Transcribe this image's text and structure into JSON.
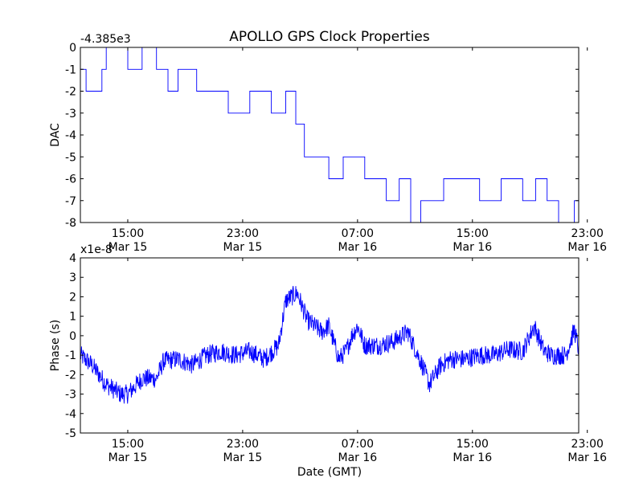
{
  "title": "APOLLO GPS Clock Properties",
  "xlabel": "Date (GMT)",
  "x_ticks": [
    {
      "time": "15:00",
      "date": "Mar 15"
    },
    {
      "time": "23:00",
      "date": "Mar 15"
    },
    {
      "time": "07:00",
      "date": "Mar 16"
    },
    {
      "time": "15:00",
      "date": "Mar 16"
    },
    {
      "time": "23:00",
      "date": "Mar 16"
    }
  ],
  "chart_data": [
    {
      "type": "line",
      "name": "dac",
      "title": "APOLLO GPS Clock Properties",
      "ylabel": "DAC",
      "offset_label": "-4.385e3",
      "x_units": "hours since 00:00 Mar 15 (GMT)",
      "xlim": [
        11.7,
        46.4
      ],
      "ylim": [
        -8,
        0
      ],
      "yticks": [
        0,
        -1,
        -2,
        -3,
        -4,
        -5,
        -6,
        -7,
        -8
      ],
      "ytick_labels": [
        "0",
        "-1",
        "-2",
        "-3",
        "-4",
        "-5",
        "-6",
        "-7",
        "-8"
      ],
      "color": "#0000ff",
      "x": [
        11.7,
        12.1,
        13.2,
        13.5,
        15.0,
        16.0,
        17.0,
        17.8,
        18.5,
        19.8,
        21.0,
        22.0,
        23.5,
        25.0,
        26.0,
        26.7,
        27.3,
        28.0,
        29.0,
        30.0,
        31.5,
        33.0,
        33.9,
        34.7,
        35.4,
        36.5,
        37.0,
        38.0,
        39.5,
        41.0,
        42.5,
        43.4,
        44.2,
        45.0,
        46.1
      ],
      "values": [
        -1,
        -2,
        -1,
        0,
        -1,
        0,
        -1,
        -2,
        -1,
        -2,
        -2,
        -3,
        -2,
        -3,
        -2,
        -3.5,
        -5,
        -5,
        -6,
        -5,
        -6,
        -7,
        -6,
        -8,
        -7,
        -7,
        -6,
        -6,
        -7,
        -6,
        -7,
        -6,
        -7,
        -8,
        -7
      ]
    },
    {
      "type": "line",
      "name": "phase",
      "ylabel": "Phase (s)",
      "offset_label": "x1e-8",
      "x_units": "hours since 00:00 Mar 15 (GMT)",
      "xlim": [
        11.7,
        46.4
      ],
      "ylim": [
        -5,
        4
      ],
      "yticks": [
        4,
        3,
        2,
        1,
        0,
        -1,
        -2,
        -3,
        -4,
        -5
      ],
      "ytick_labels": [
        "4",
        "3",
        "2",
        "1",
        "0",
        "-1",
        "-2",
        "-3",
        "-4",
        "-5"
      ],
      "color": "#0000ff",
      "x": [
        11.7,
        12.5,
        13.5,
        14.5,
        15.0,
        16.0,
        17.0,
        17.5,
        18.5,
        19.5,
        20.5,
        21.5,
        22.5,
        23.5,
        24.5,
        25.5,
        26.0,
        26.8,
        27.5,
        28.5,
        29.0,
        29.7,
        30.2,
        30.6,
        31.0,
        31.5,
        32.5,
        33.5,
        34.5,
        35.5,
        36.0,
        36.8,
        37.5,
        38.5,
        39.5,
        40.5,
        41.5,
        42.5,
        43.3,
        44.0,
        44.5,
        45.5,
        46.1,
        46.4
      ],
      "values": [
        -1,
        -1.5,
        -2.5,
        -3,
        -3,
        -2.2,
        -2.2,
        -1.3,
        -1.2,
        -1.5,
        -1,
        -0.8,
        -1,
        -0.8,
        -1.2,
        -0.5,
        1.8,
        2.2,
        0.8,
        0.2,
        0.5,
        -1.2,
        -0.8,
        0,
        0.5,
        -0.5,
        -0.5,
        -0.3,
        0.2,
        -1.5,
        -2.5,
        -1.5,
        -1.2,
        -1.2,
        -1,
        -1,
        -0.7,
        -0.8,
        0.5,
        -0.8,
        -1,
        -1,
        0.3,
        -0.7
      ]
    }
  ]
}
